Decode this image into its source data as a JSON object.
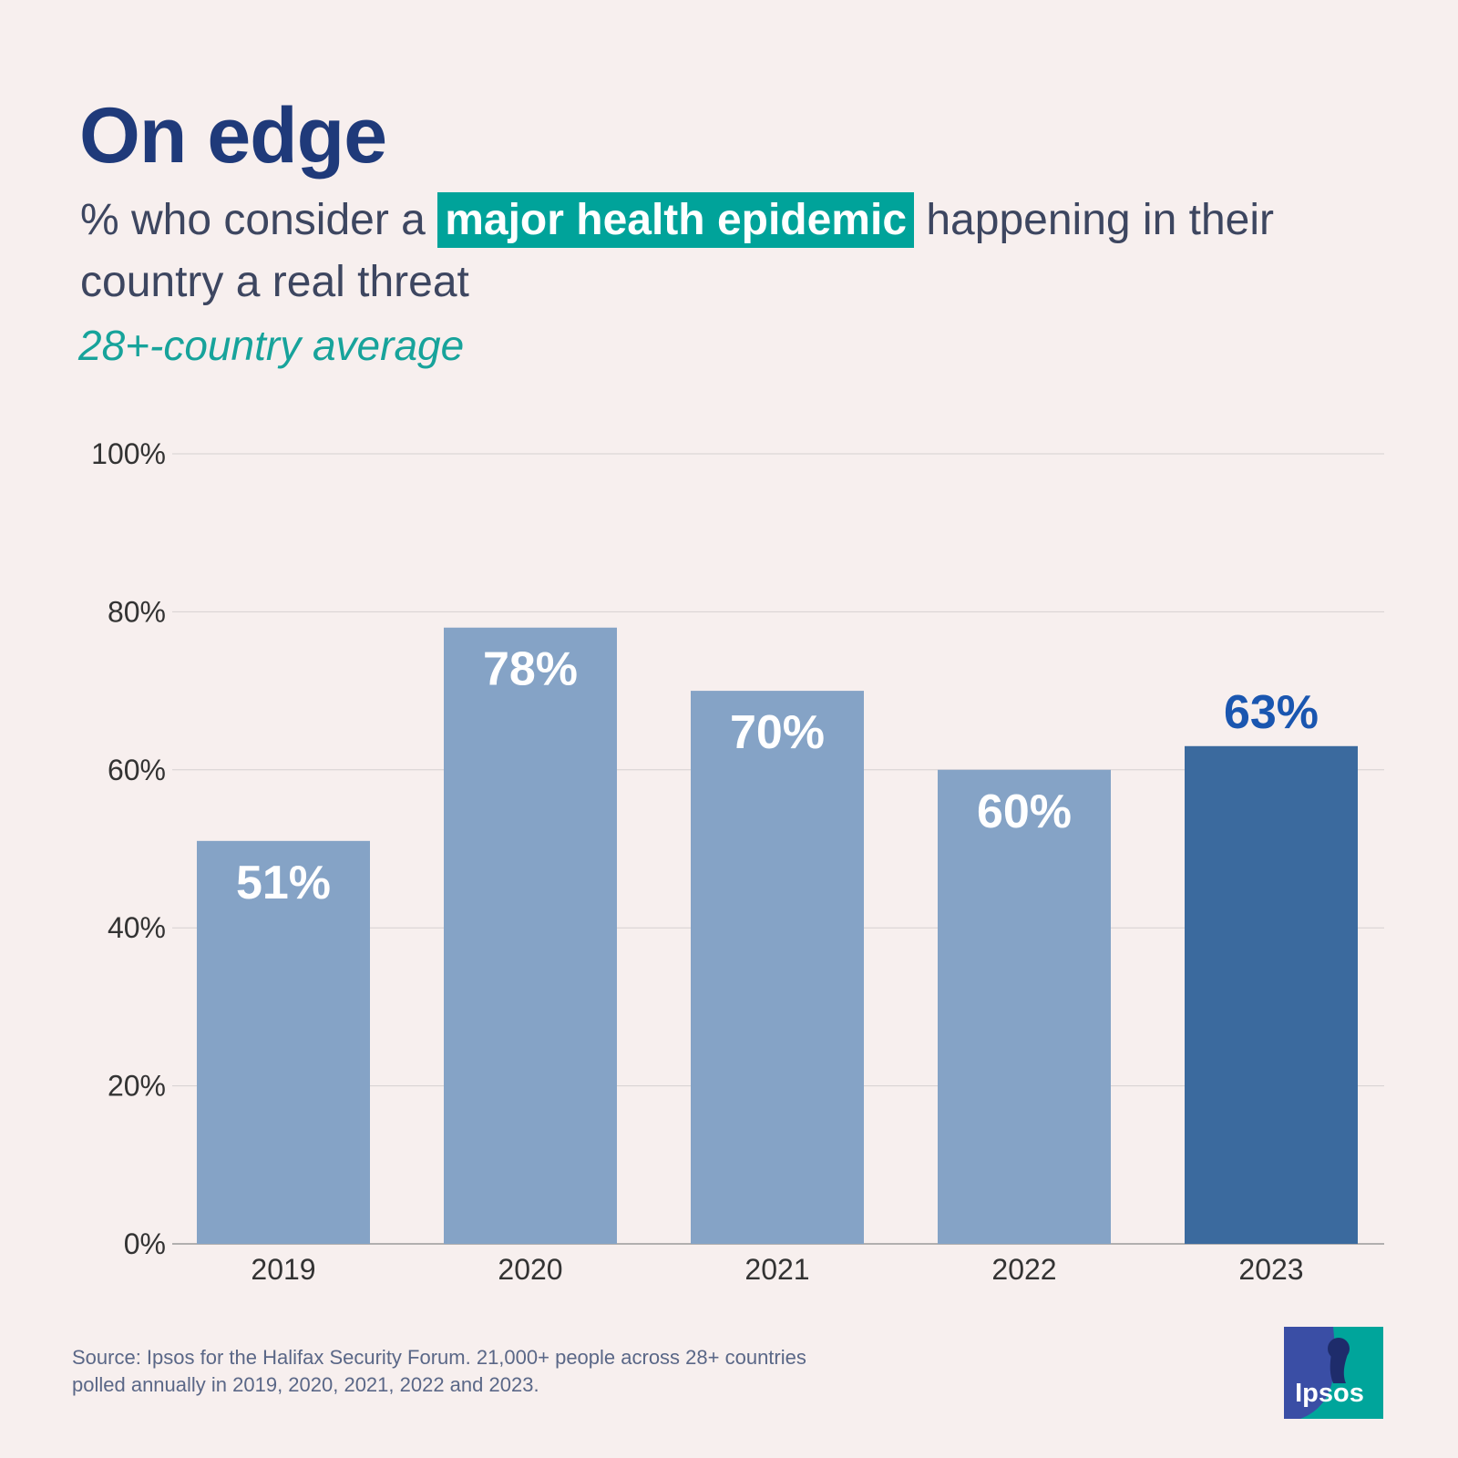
{
  "header": {
    "title": "On edge",
    "subtitle_before": "% who consider a ",
    "subtitle_highlight": "major health epidemic",
    "subtitle_after": " happening in their country a real threat",
    "note": "28+-country average"
  },
  "chart_data": {
    "type": "bar",
    "categories": [
      "2019",
      "2020",
      "2021",
      "2022",
      "2023"
    ],
    "values": [
      51,
      78,
      70,
      60,
      63
    ],
    "value_labels": [
      "51%",
      "78%",
      "70%",
      "60%",
      "63%"
    ],
    "highlight_index": 4,
    "ylim": [
      0,
      100
    ],
    "yticks": [
      0,
      20,
      40,
      60,
      80,
      100
    ],
    "ytick_labels": [
      "0%",
      "20%",
      "40%",
      "60%",
      "80%",
      "100%"
    ],
    "grid": true,
    "colors": {
      "bar": "#85a3c6",
      "bar_highlight": "#3b6a9e",
      "label_inside": "#ffffff",
      "label_highlight": "#1a56b0"
    }
  },
  "footer": {
    "source_line1": "Source: Ipsos for the Halifax Security Forum. 21,000+ people across 28+ countries",
    "source_line2": "polled annually in 2019, 2020, 2021, 2022 and 2023.",
    "logo_text": "Ipsos",
    "logo_colors": {
      "blue": "#3a4ea5",
      "teal": "#00a59b"
    }
  }
}
